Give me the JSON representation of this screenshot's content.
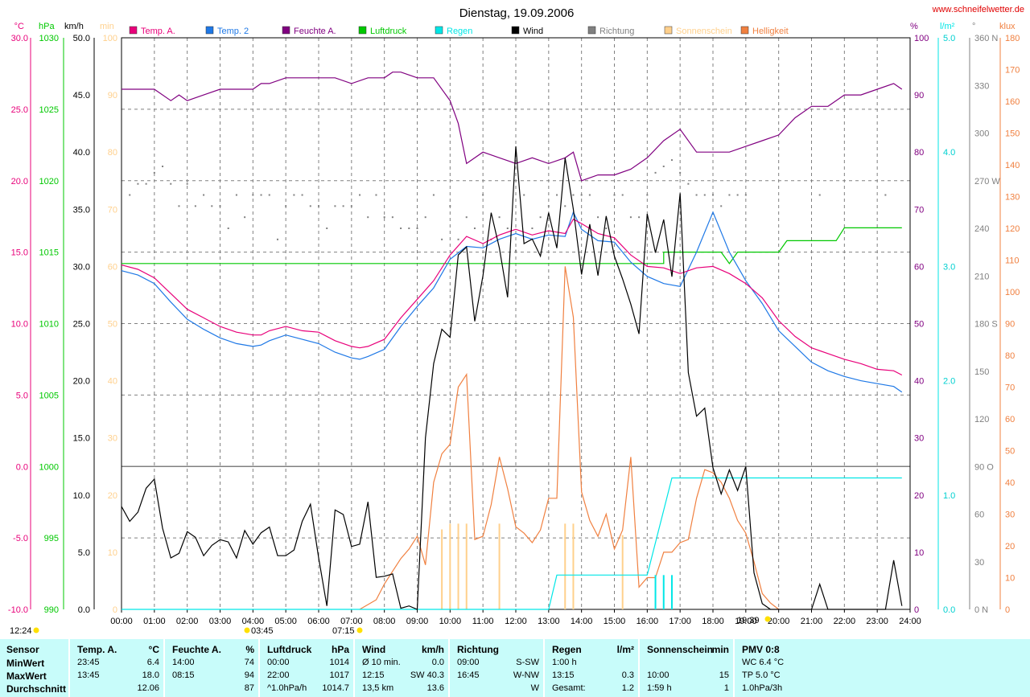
{
  "header": {
    "title": "Dienstag, 19.09.2006",
    "site": "www.schneifelwetter.de"
  },
  "legend": [
    {
      "label": "Temp. A.",
      "color": "#e8007a"
    },
    {
      "label": "Temp. 2",
      "color": "#1e78e6"
    },
    {
      "label": "Feuchte A.",
      "color": "#800080"
    },
    {
      "label": "Luftdruck",
      "color": "#00c800"
    },
    {
      "label": "Regen",
      "color": "#00e6e6"
    },
    {
      "label": "Wind",
      "color": "#000000"
    },
    {
      "label": "Richtung",
      "color": "#808080"
    },
    {
      "label": "Sonnenschein",
      "color": "#ffd08c"
    },
    {
      "label": "Helligkeit",
      "color": "#f08040"
    }
  ],
  "axis_titles": {
    "temp": "°C",
    "pressure": "hPa",
    "wind": "km/h",
    "sun": "min",
    "humidity": "%",
    "rain": "l/m²",
    "direction": "°",
    "brightness": "klux"
  },
  "axes": {
    "temp_ticks": [
      "30.0",
      "25.0",
      "20.0",
      "15.0",
      "10.0",
      "5.0",
      "0.0",
      "-5.0",
      "-10.0"
    ],
    "pressure_ticks": [
      "1030",
      "1025",
      "1020",
      "1015",
      "1010",
      "1005",
      "1000",
      "995",
      "990"
    ],
    "wind_ticks": [
      "50.0",
      "45.0",
      "40.0",
      "35.0",
      "30.0",
      "25.0",
      "20.0",
      "15.0",
      "10.0",
      "5.0",
      "0.0"
    ],
    "sun_ticks": [
      "100",
      "90",
      "80",
      "70",
      "60",
      "50",
      "40",
      "30",
      "20",
      "10",
      "0"
    ],
    "humidity_ticks": [
      "100",
      "90",
      "80",
      "70",
      "60",
      "50",
      "40",
      "30",
      "20",
      "10",
      "0"
    ],
    "rain_ticks": [
      "5.0",
      "4.0",
      "3.0",
      "2.0",
      "1.0",
      "0.0"
    ],
    "direction_ticks": [
      "360 N",
      "330",
      "300",
      "270 W",
      "240",
      "210",
      "180 S",
      "150",
      "120",
      "90 O",
      "60",
      "30",
      "0 N"
    ],
    "brightness_ticks": [
      "180",
      "170",
      "160",
      "150",
      "140",
      "130",
      "120",
      "110",
      "100",
      "90",
      "80",
      "70",
      "60",
      "50",
      "40",
      "30",
      "20",
      "10",
      "0"
    ],
    "time_ticks": [
      "00:00",
      "01:00",
      "02:00",
      "03:00",
      "04:00",
      "05:00",
      "06:00",
      "07:00",
      "08:00",
      "09:00",
      "10:00",
      "11:00",
      "12:00",
      "13:00",
      "14:00",
      "15:00",
      "16:00",
      "17:00",
      "18:00",
      "19:00",
      "20:00",
      "21:00",
      "22:00",
      "23:00",
      "24:00"
    ]
  },
  "sun_markers": {
    "left": "12:24",
    "moonrise": "03:45",
    "sunrise": "07:15",
    "sunset": "19:39"
  },
  "chart_data": {
    "type": "line",
    "title": "Dienstag, 19.09.2006",
    "x_range_hours": [
      0,
      24
    ],
    "ranges": {
      "temp_c": [
        -10,
        30
      ],
      "pressure_hpa": [
        990,
        1030
      ],
      "wind_kmh": [
        0,
        50
      ],
      "sun_min": [
        0,
        100
      ],
      "humidity_pct": [
        0,
        100
      ],
      "rain_l_m2": [
        0,
        5
      ],
      "direction_deg": [
        0,
        360
      ],
      "brightness_klux": [
        0,
        180
      ]
    },
    "grid": true,
    "series": [
      {
        "name": "Temp. A.",
        "unit": "°C",
        "color": "#e8007a",
        "x": [
          0,
          0.5,
          1,
          1.5,
          2,
          2.5,
          3,
          3.5,
          4,
          4.25,
          4.5,
          5,
          5.5,
          6,
          6.5,
          7,
          7.25,
          7.5,
          8,
          8.5,
          9,
          9.5,
          10,
          10.5,
          11,
          11.5,
          12,
          12.5,
          13,
          13.5,
          13.75,
          14,
          14.5,
          15,
          15.5,
          16,
          16.5,
          17,
          17.5,
          18,
          18.5,
          19,
          19.5,
          20,
          20.5,
          21,
          21.5,
          22,
          22.5,
          23,
          23.5,
          23.75
        ],
        "values": [
          14.1,
          13.8,
          13.2,
          12.1,
          11.0,
          10.4,
          9.8,
          9.4,
          9.2,
          9.2,
          9.5,
          9.8,
          9.5,
          9.4,
          8.8,
          8.4,
          8.3,
          8.4,
          8.9,
          10.4,
          11.7,
          13.0,
          14.8,
          16.1,
          15.6,
          16.2,
          16.6,
          16.2,
          16.5,
          16.3,
          17.3,
          17.0,
          16.3,
          16.0,
          14.8,
          14.0,
          13.9,
          13.5,
          13.9,
          14.0,
          13.5,
          12.8,
          11.8,
          10.2,
          9.1,
          8.3,
          7.9,
          7.5,
          7.2,
          6.8,
          6.7,
          6.4
        ]
      },
      {
        "name": "Temp. 2",
        "unit": "°C",
        "color": "#1e78e6",
        "x": [
          0,
          0.5,
          1,
          1.5,
          2,
          2.5,
          3,
          3.5,
          4,
          4.25,
          4.5,
          5,
          5.5,
          6,
          6.5,
          7,
          7.25,
          7.5,
          8,
          8.5,
          9,
          9.5,
          10,
          10.5,
          11,
          11.5,
          12,
          12.5,
          13,
          13.5,
          13.75,
          14,
          14.5,
          15,
          15.5,
          16,
          16.5,
          17,
          17.5,
          18,
          18.5,
          19,
          19.5,
          20,
          20.5,
          21,
          21.5,
          22,
          22.5,
          23,
          23.5,
          23.75
        ],
        "values": [
          13.7,
          13.4,
          12.8,
          11.5,
          10.3,
          9.6,
          9.0,
          8.6,
          8.4,
          8.5,
          8.8,
          9.2,
          8.9,
          8.6,
          8.0,
          7.6,
          7.5,
          7.7,
          8.2,
          9.8,
          11.2,
          12.5,
          14.5,
          15.4,
          15.3,
          15.9,
          16.3,
          15.9,
          16.2,
          16.1,
          17.8,
          16.6,
          15.8,
          15.7,
          14.3,
          13.3,
          12.8,
          12.6,
          15.0,
          17.8,
          15.0,
          13.0,
          11.4,
          9.5,
          8.4,
          7.3,
          6.7,
          6.3,
          6.0,
          5.8,
          5.6,
          5.2
        ]
      },
      {
        "name": "Feuchte A.",
        "unit": "%",
        "color": "#800080",
        "x": [
          0,
          0.5,
          1,
          1.5,
          1.75,
          2,
          2.5,
          3,
          3.5,
          4,
          4.25,
          4.5,
          5,
          5.5,
          6,
          6.5,
          7,
          7.5,
          8,
          8.25,
          8.5,
          9,
          9.5,
          10,
          10.25,
          10.5,
          11,
          11.5,
          12,
          12.5,
          13,
          13.5,
          13.75,
          14,
          14.5,
          15,
          15.5,
          16,
          16.5,
          17,
          17.5,
          18,
          18.5,
          19,
          19.5,
          20,
          20.5,
          21,
          21.5,
          22,
          22.5,
          23,
          23.5,
          23.75
        ],
        "values": [
          91,
          91,
          91,
          89,
          90,
          89,
          90,
          91,
          91,
          91,
          92,
          92,
          93,
          93,
          93,
          93,
          92,
          93,
          93,
          94,
          94,
          93,
          93,
          89,
          85,
          78,
          80,
          79,
          78,
          79,
          78,
          79,
          80,
          75,
          76,
          76,
          77,
          79,
          82,
          84,
          80,
          80,
          80,
          81,
          82,
          83,
          86,
          88,
          88,
          90,
          90,
          91,
          92,
          91
        ]
      },
      {
        "name": "Luftdruck",
        "unit": "hPa",
        "color": "#00c800",
        "x": [
          0,
          16.5,
          16.5,
          18.25,
          18.5,
          18.75,
          20,
          20.25,
          21.75,
          22,
          23.75
        ],
        "values": [
          1014.2,
          1014.2,
          1015.0,
          1015.0,
          1014.2,
          1015.0,
          1015.0,
          1015.8,
          1015.8,
          1016.7,
          1016.7
        ]
      },
      {
        "name": "Regen",
        "unit": "l/m²",
        "color": "#00e6e6",
        "x": [
          0,
          13.0,
          13.25,
          16.0,
          16.75,
          23.75
        ],
        "values": [
          0,
          0,
          0.3,
          0.3,
          1.15,
          1.15
        ]
      },
      {
        "name": "Wind",
        "unit": "km/h",
        "color": "#000000",
        "x": [
          0,
          0.25,
          0.5,
          0.75,
          1,
          1.25,
          1.5,
          1.75,
          2,
          2.25,
          2.5,
          2.75,
          3,
          3.25,
          3.5,
          3.75,
          4,
          4.25,
          4.5,
          4.75,
          5,
          5.25,
          5.5,
          5.75,
          6,
          6.25,
          6.5,
          6.75,
          7,
          7.25,
          7.5,
          7.75,
          8,
          8.25,
          8.5,
          8.75,
          9,
          9.25,
          9.5,
          9.75,
          10,
          10.25,
          10.5,
          10.75,
          11,
          11.25,
          11.5,
          11.75,
          12,
          12.25,
          12.5,
          12.75,
          13,
          13.25,
          13.5,
          13.75,
          14,
          14.25,
          14.5,
          14.75,
          15,
          15.25,
          15.5,
          15.75,
          16,
          16.25,
          16.5,
          16.75,
          17,
          17.25,
          17.5,
          17.75,
          18,
          18.25,
          18.5,
          18.75,
          19,
          19.25,
          19.5,
          19.75,
          20,
          20.25,
          20.5,
          20.75,
          21,
          21.25,
          21.5,
          21.75,
          22,
          22.25,
          22.5,
          22.75,
          23,
          23.25,
          23.5,
          23.75
        ],
        "values": [
          9.0,
          7.7,
          8.5,
          10.6,
          11.4,
          7.1,
          4.5,
          4.9,
          6.8,
          6.3,
          4.7,
          5.6,
          6.1,
          5.9,
          4.5,
          6.9,
          5.7,
          6.7,
          7.2,
          4.7,
          4.7,
          5.2,
          7.7,
          9.2,
          4.5,
          0.3,
          8.7,
          8.3,
          5.5,
          5.7,
          9.4,
          2.8,
          2.9,
          3.1,
          0.1,
          0.3,
          0,
          15.0,
          21.5,
          24.5,
          23.8,
          31.0,
          31.7,
          25.2,
          29.2,
          34.7,
          31.6,
          27.3,
          40.5,
          32.0,
          32.4,
          30.9,
          34.7,
          31.6,
          39.5,
          35.0,
          29.3,
          33.7,
          29.2,
          34.4,
          30.9,
          28.9,
          26.7,
          24.1,
          34.6,
          31.2,
          34.1,
          29.1,
          36.4,
          20.7,
          16.9,
          17.6,
          12.4,
          10.1,
          12.2,
          10.4,
          12.5,
          3.2,
          0.5,
          0,
          0,
          0,
          0,
          0,
          0,
          2.2,
          0,
          0,
          0,
          0,
          0,
          0,
          0,
          0,
          4.3,
          0.3
        ]
      },
      {
        "name": "Richtung",
        "unit": "°",
        "color": "#808080",
        "x": [
          0.25,
          0.5,
          0.75,
          1,
          1.25,
          1.5,
          1.75,
          2,
          2.25,
          2.5,
          2.75,
          3,
          3.25,
          3.5,
          3.75,
          4,
          4.25,
          4.5,
          4.75,
          5,
          5.25,
          5.5,
          5.75,
          6,
          6.25,
          6.5,
          6.75,
          7,
          7.25,
          7.5,
          7.75,
          8,
          8.25,
          8.5,
          8.75,
          9,
          9.25,
          9.5,
          9.75,
          10,
          10.25,
          10.5,
          10.75,
          11,
          11.25,
          11.5,
          11.75,
          12,
          12.25,
          12.5,
          12.75,
          13,
          13.25,
          13.5,
          13.75,
          14,
          14.25,
          14.5,
          14.75,
          15,
          15.25,
          15.5,
          15.75,
          16,
          16.25,
          16.5,
          16.75,
          17,
          17.25,
          17.5,
          17.75,
          18,
          18.25,
          18.5,
          18.75,
          19,
          21.25,
          23.25
        ],
        "values": [
          261,
          268,
          268,
          275,
          279,
          268,
          254,
          268,
          254,
          261,
          254,
          254,
          240,
          261,
          247,
          261,
          261,
          261,
          233,
          254,
          261,
          261,
          254,
          254,
          240,
          254,
          254,
          254,
          261,
          247,
          261,
          247,
          247,
          240,
          240,
          240,
          247,
          261,
          233,
          254,
          233,
          247,
          240,
          261,
          233,
          247,
          240,
          226,
          261,
          240,
          247,
          254,
          261,
          254,
          261,
          261,
          261,
          247,
          240,
          261,
          261,
          247,
          247,
          261,
          275,
          279,
          283,
          275,
          268,
          261,
          261,
          261,
          254,
          261,
          261,
          261,
          261,
          261
        ]
      },
      {
        "name": "Sonnenschein",
        "unit": "min",
        "color": "#ffd08c",
        "x": [
          9.75,
          10.0,
          10.25,
          10.5,
          11.5,
          13.5,
          13.75,
          15.25
        ],
        "values": [
          14,
          15,
          15,
          15,
          15,
          15,
          15,
          13
        ]
      },
      {
        "name": "Helligkeit",
        "unit": "klux",
        "color": "#f08040",
        "x": [
          7.25,
          7.75,
          8.0,
          8.25,
          8.5,
          8.75,
          9.0,
          9.25,
          9.5,
          9.75,
          10.0,
          10.25,
          10.5,
          10.75,
          11.0,
          11.25,
          11.5,
          11.75,
          12.0,
          12.25,
          12.5,
          12.75,
          13.0,
          13.25,
          13.5,
          13.75,
          14.0,
          14.25,
          14.5,
          14.75,
          15.0,
          15.25,
          15.5,
          15.75,
          16.0,
          16.25,
          16.5,
          16.75,
          17.0,
          17.25,
          17.5,
          17.75,
          18.0,
          18.25,
          18.5,
          18.75,
          19.0,
          19.25,
          19.5,
          19.75,
          20.0
        ],
        "values": [
          0,
          3,
          8,
          12,
          16,
          19,
          23,
          14,
          40,
          49,
          52,
          70,
          74,
          22,
          23,
          33,
          48,
          38,
          26,
          24,
          21,
          25,
          35,
          35,
          108,
          92,
          37,
          28,
          23,
          30,
          19,
          25,
          48,
          7,
          10,
          10,
          18,
          18,
          21,
          22,
          35,
          44,
          43,
          40,
          35,
          28,
          24,
          15,
          5,
          2,
          0
        ]
      }
    ]
  },
  "stats": {
    "cols": [
      {
        "header": "Sensor",
        "unit": "",
        "rows": [
          [
            "MinWert"
          ],
          [
            "MaxWert"
          ],
          [
            "Durchschnitt"
          ]
        ]
      },
      {
        "header": "Temp. A.",
        "unit": "°C",
        "rows": [
          [
            "23:45",
            "6.4"
          ],
          [
            "13:45",
            "18.0"
          ],
          [
            "",
            "12.06"
          ]
        ]
      },
      {
        "header": "Feuchte A.",
        "unit": "%",
        "rows": [
          [
            "14:00",
            "74"
          ],
          [
            "08:15",
            "94"
          ],
          [
            "",
            "87"
          ]
        ]
      },
      {
        "header": "Luftdruck",
        "unit": "hPa",
        "rows": [
          [
            "00:00",
            "1014"
          ],
          [
            "22:00",
            "1017"
          ],
          [
            "^1.0hPa/h",
            "1014.7"
          ]
        ]
      },
      {
        "header": "Wind",
        "unit": "km/h",
        "rows": [
          [
            "Ø 10 min.",
            "0.0"
          ],
          [
            "12:15",
            "SW 40.3"
          ],
          [
            "13,5 km",
            "13.6"
          ]
        ]
      },
      {
        "header": "Richtung",
        "unit": "",
        "rows": [
          [
            "09:00",
            "S-SW"
          ],
          [
            "16:45",
            "W-NW"
          ],
          [
            "",
            "W"
          ]
        ]
      },
      {
        "header": "Regen",
        "unit": "l/m²",
        "rows": [
          [
            "1:00 h",
            ""
          ],
          [
            "13:15",
            "0.3"
          ],
          [
            "Gesamt:",
            "1.2"
          ]
        ]
      },
      {
        "header": "Sonnenschein",
        "unit": "min",
        "rows": [
          [
            "",
            ""
          ],
          [
            "10:00",
            "15"
          ],
          [
            "1:59 h",
            "1"
          ]
        ]
      },
      {
        "header": "PMV 0:8",
        "unit": "",
        "rows": [
          [
            "WC 6.4 °C"
          ],
          [
            "TP 5.0 °C"
          ],
          [
            "1.0hPa/3h"
          ]
        ]
      }
    ]
  }
}
